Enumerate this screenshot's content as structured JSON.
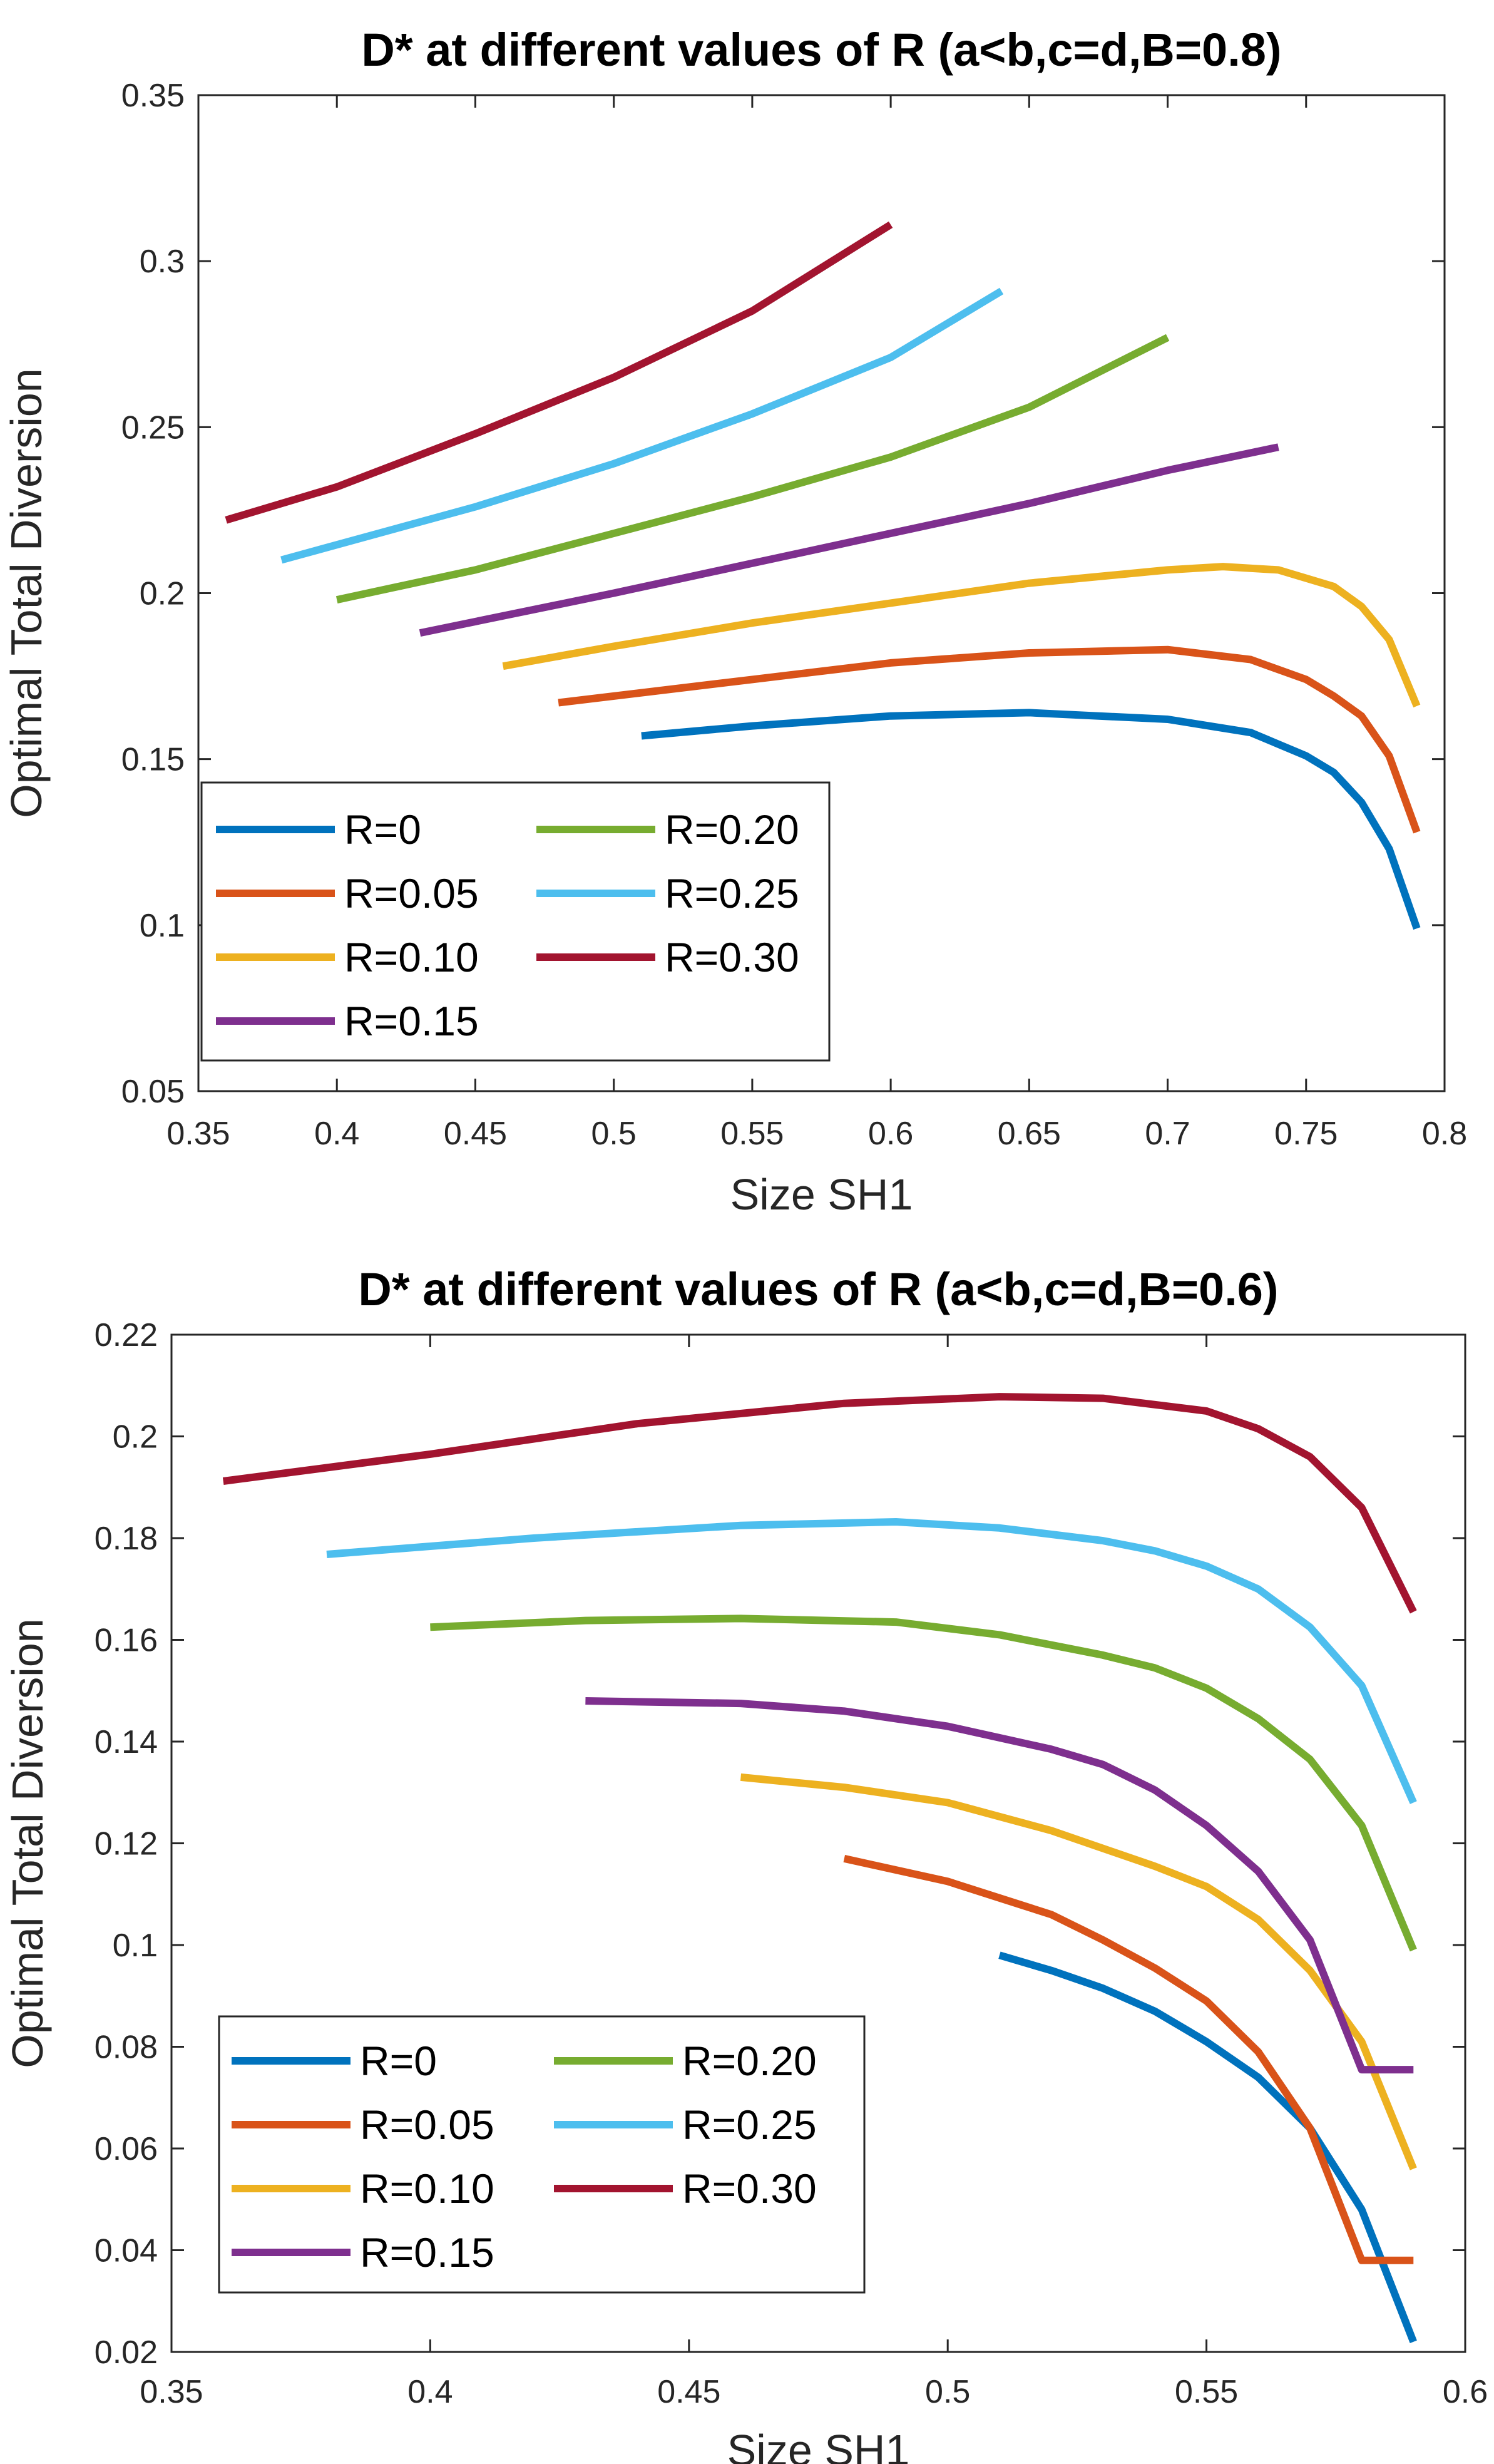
{
  "colors": [
    "#0072BD",
    "#D95319",
    "#EDB120",
    "#7E2F8E",
    "#77AC30",
    "#4DBEEE",
    "#A2142F"
  ],
  "chart_data": [
    {
      "type": "line",
      "title": "D* at different values of R (a<b,c=d,B=0.8)",
      "xlabel": "Size SH1",
      "ylabel": "Optimal Total Diversion",
      "xlim": [
        0.35,
        0.8
      ],
      "ylim": [
        0.05,
        0.35
      ],
      "xticks": [
        "0.35",
        "0.4",
        "0.45",
        "0.5",
        "0.55",
        "0.6",
        "0.65",
        "0.7",
        "0.75",
        "0.8"
      ],
      "yticks": [
        "0.05",
        "0.1",
        "0.15",
        "0.2",
        "0.25",
        "0.3",
        "0.35"
      ],
      "legend_position": "bottom-left",
      "series": [
        {
          "name": "R=0",
          "x": [
            0.51,
            0.55,
            0.6,
            0.65,
            0.7,
            0.73,
            0.75,
            0.76,
            0.77,
            0.78,
            0.79
          ],
          "y": [
            0.157,
            0.16,
            0.163,
            0.164,
            0.162,
            0.158,
            0.151,
            0.146,
            0.137,
            0.123,
            0.099
          ]
        },
        {
          "name": "R=0.05",
          "x": [
            0.48,
            0.55,
            0.6,
            0.65,
            0.7,
            0.73,
            0.75,
            0.76,
            0.77,
            0.78,
            0.79
          ],
          "y": [
            0.167,
            0.174,
            0.179,
            0.182,
            0.183,
            0.18,
            0.174,
            0.169,
            0.163,
            0.151,
            0.128
          ]
        },
        {
          "name": "R=0.10",
          "x": [
            0.46,
            0.5,
            0.55,
            0.6,
            0.65,
            0.7,
            0.72,
            0.74,
            0.76,
            0.77,
            0.78,
            0.79
          ],
          "y": [
            0.178,
            0.184,
            0.191,
            0.197,
            0.203,
            0.207,
            0.208,
            0.207,
            0.202,
            0.196,
            0.186,
            0.166
          ]
        },
        {
          "name": "R=0.15",
          "x": [
            0.43,
            0.5,
            0.55,
            0.6,
            0.65,
            0.7,
            0.74
          ],
          "y": [
            0.188,
            0.2,
            0.209,
            0.218,
            0.227,
            0.237,
            0.244
          ]
        },
        {
          "name": "R=0.20",
          "x": [
            0.4,
            0.45,
            0.5,
            0.55,
            0.6,
            0.65,
            0.7
          ],
          "y": [
            0.198,
            0.207,
            0.218,
            0.229,
            0.241,
            0.256,
            0.277
          ]
        },
        {
          "name": "R=0.25",
          "x": [
            0.38,
            0.45,
            0.5,
            0.55,
            0.6,
            0.64
          ],
          "y": [
            0.21,
            0.226,
            0.239,
            0.254,
            0.271,
            0.291
          ]
        },
        {
          "name": "R=0.30",
          "x": [
            0.36,
            0.4,
            0.45,
            0.5,
            0.55,
            0.6
          ],
          "y": [
            0.222,
            0.232,
            0.248,
            0.265,
            0.285,
            0.311
          ]
        }
      ]
    },
    {
      "type": "line",
      "title": "D* at different values of R (a<b,c=d,B=0.6)",
      "xlabel": "Size SH1",
      "ylabel": "Optimal Total Diversion",
      "xlim": [
        0.35,
        0.6
      ],
      "ylim": [
        0.02,
        0.22
      ],
      "xticks": [
        "0.35",
        "0.4",
        "0.45",
        "0.5",
        "0.55",
        "0.6"
      ],
      "yticks": [
        "0.02",
        "0.04",
        "0.06",
        "0.08",
        "0.1",
        "0.12",
        "0.14",
        "0.16",
        "0.18",
        "0.2",
        "0.22"
      ],
      "legend_position": "bottom-left",
      "series": [
        {
          "name": "R=0",
          "x": [
            0.51,
            0.52,
            0.53,
            0.54,
            0.55,
            0.56,
            0.57,
            0.58,
            0.59
          ],
          "y": [
            0.098,
            0.095,
            0.0915,
            0.087,
            0.081,
            0.074,
            0.064,
            0.048,
            0.022
          ]
        },
        {
          "name": "R=0.05",
          "x": [
            0.48,
            0.5,
            0.52,
            0.53,
            0.54,
            0.55,
            0.56,
            0.57,
            0.58,
            0.59
          ],
          "y": [
            0.117,
            0.1125,
            0.106,
            0.101,
            0.0955,
            0.089,
            0.079,
            0.064,
            0.038,
            0.038
          ]
        },
        {
          "name": "R=0.10",
          "x": [
            0.46,
            0.48,
            0.5,
            0.52,
            0.54,
            0.55,
            0.56,
            0.57,
            0.58,
            0.59
          ],
          "y": [
            0.133,
            0.131,
            0.128,
            0.1225,
            0.1155,
            0.1115,
            0.105,
            0.095,
            0.081,
            0.056
          ]
        },
        {
          "name": "R=0.15",
          "x": [
            0.43,
            0.46,
            0.48,
            0.5,
            0.52,
            0.53,
            0.54,
            0.55,
            0.56,
            0.57,
            0.58,
            0.59
          ],
          "y": [
            0.148,
            0.1475,
            0.146,
            0.143,
            0.1385,
            0.1355,
            0.1305,
            0.1235,
            0.1145,
            0.101,
            0.0755,
            0.0755
          ]
        },
        {
          "name": "R=0.20",
          "x": [
            0.4,
            0.43,
            0.46,
            0.49,
            0.51,
            0.53,
            0.54,
            0.55,
            0.56,
            0.57,
            0.58,
            0.59
          ],
          "y": [
            0.1625,
            0.1638,
            0.1642,
            0.1635,
            0.161,
            0.157,
            0.1545,
            0.1505,
            0.1445,
            0.1365,
            0.1235,
            0.099
          ]
        },
        {
          "name": "R=0.25",
          "x": [
            0.38,
            0.42,
            0.46,
            0.49,
            0.51,
            0.53,
            0.54,
            0.55,
            0.56,
            0.57,
            0.58,
            0.59
          ],
          "y": [
            0.1768,
            0.18,
            0.1825,
            0.1832,
            0.182,
            0.1795,
            0.1775,
            0.1745,
            0.17,
            0.1625,
            0.151,
            0.128
          ]
        },
        {
          "name": "R=0.30",
          "x": [
            0.36,
            0.4,
            0.44,
            0.48,
            0.51,
            0.53,
            0.55,
            0.56,
            0.57,
            0.58,
            0.59
          ],
          "y": [
            0.1912,
            0.1965,
            0.2025,
            0.2065,
            0.2078,
            0.2075,
            0.205,
            0.2015,
            0.196,
            0.186,
            0.1655
          ]
        }
      ]
    }
  ]
}
